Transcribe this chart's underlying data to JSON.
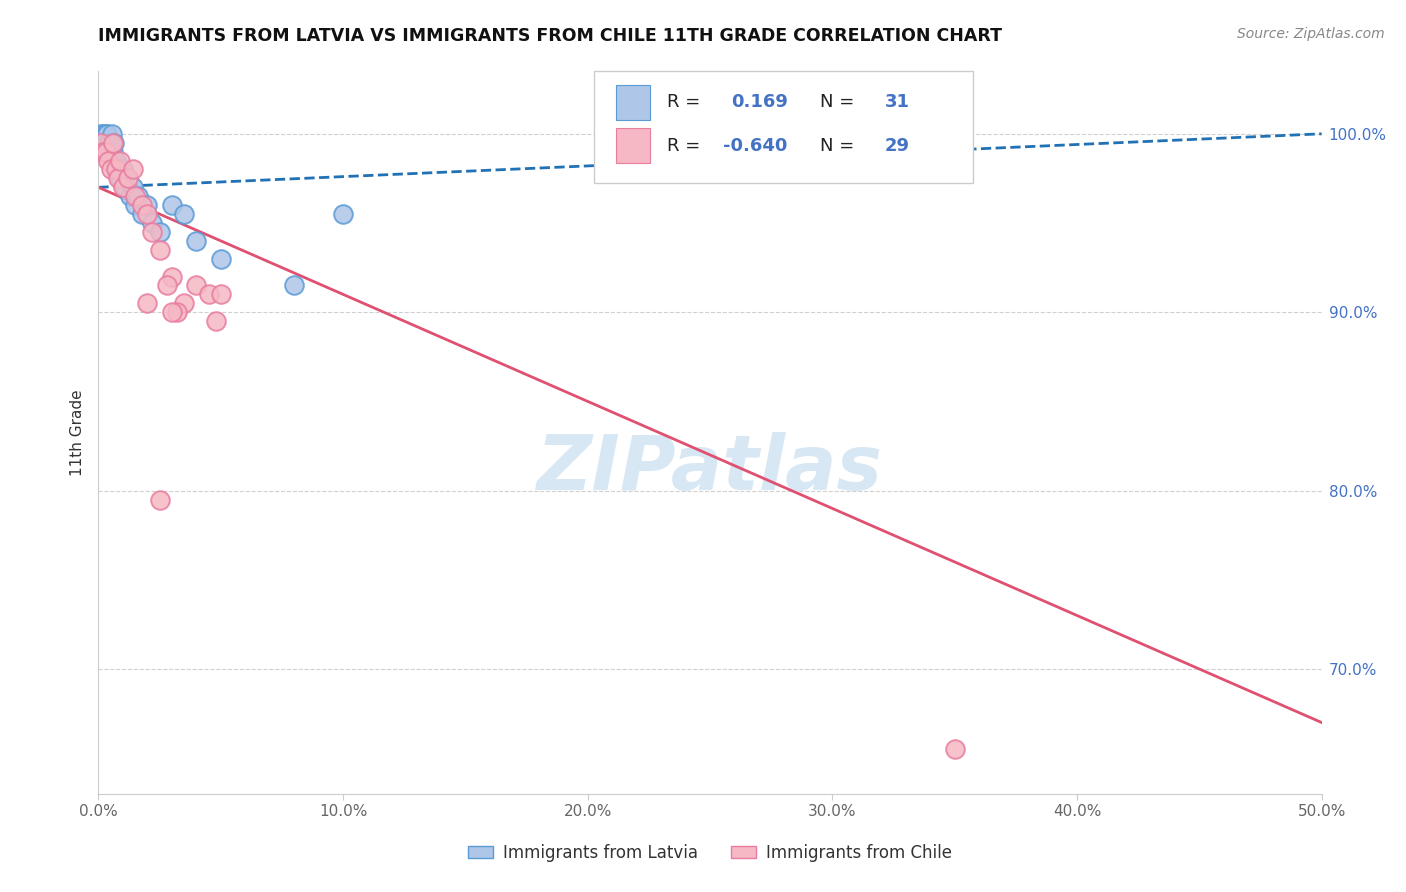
{
  "title": "IMMIGRANTS FROM LATVIA VS IMMIGRANTS FROM CHILE 11TH GRADE CORRELATION CHART",
  "source": "Source: ZipAtlas.com",
  "ylabel": "11th Grade",
  "xlim": [
    0.0,
    50.0
  ],
  "ylim": [
    63.0,
    103.5
  ],
  "right_yticks": [
    100.0,
    90.0,
    80.0,
    70.0
  ],
  "latvia_R": 0.169,
  "latvia_N": 31,
  "chile_R": -0.64,
  "chile_N": 29,
  "latvia_color": "#aec6e8",
  "latvia_edge_color": "#5b9bd5",
  "chile_color": "#f5b8c4",
  "chile_edge_color": "#e87da0",
  "latvia_trend_color": "#2171b5",
  "chile_trend_color": "#e05070",
  "latvia_x": [
    0.1,
    0.2,
    0.25,
    0.3,
    0.35,
    0.4,
    0.45,
    0.5,
    0.55,
    0.6,
    0.65,
    0.7,
    0.8,
    0.9,
    1.0,
    1.1,
    1.2,
    1.3,
    1.4,
    1.5,
    1.6,
    1.8,
    2.0,
    2.2,
    2.5,
    3.0,
    3.5,
    4.0,
    5.0,
    8.0,
    10.0
  ],
  "latvia_y": [
    100.0,
    100.0,
    99.5,
    100.0,
    100.0,
    99.5,
    99.5,
    99.0,
    100.0,
    99.0,
    99.5,
    98.5,
    98.0,
    97.5,
    98.0,
    97.0,
    97.5,
    96.5,
    97.0,
    96.0,
    96.5,
    95.5,
    96.0,
    95.0,
    94.5,
    96.0,
    95.5,
    94.0,
    93.0,
    91.5,
    95.5
  ],
  "chile_x": [
    0.1,
    0.2,
    0.3,
    0.4,
    0.5,
    0.6,
    0.7,
    0.8,
    0.9,
    1.0,
    1.2,
    1.4,
    1.5,
    1.8,
    2.0,
    2.2,
    2.5,
    3.0,
    3.5,
    4.0,
    4.5,
    5.0,
    3.2,
    4.8,
    2.0,
    2.8,
    3.0,
    35.0,
    2.5
  ],
  "chile_y": [
    99.5,
    99.0,
    99.0,
    98.5,
    98.0,
    99.5,
    98.0,
    97.5,
    98.5,
    97.0,
    97.5,
    98.0,
    96.5,
    96.0,
    95.5,
    94.5,
    93.5,
    92.0,
    90.5,
    91.5,
    91.0,
    91.0,
    90.0,
    89.5,
    90.5,
    91.5,
    90.0,
    65.5,
    79.5
  ],
  "watermark_text": "ZIPatlas",
  "watermark_color": "#c8ddf0",
  "background_color": "#ffffff",
  "grid_color": "#d0d0d0",
  "spine_color": "#cccccc",
  "title_color": "#111111",
  "ylabel_color": "#333333",
  "right_tick_color": "#4472c4",
  "source_color": "#888888",
  "legend_text_color": "#222222",
  "legend_number_color": "#4472c4"
}
